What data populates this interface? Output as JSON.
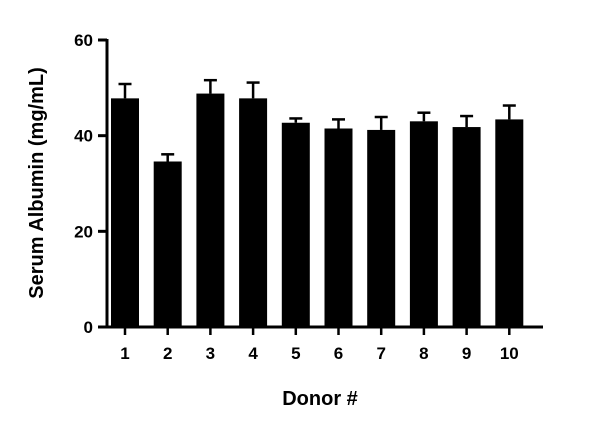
{
  "chart_data": {
    "type": "bar",
    "categories": [
      "1",
      "2",
      "3",
      "4",
      "5",
      "6",
      "7",
      "8",
      "9",
      "10"
    ],
    "values": [
      47.8,
      34.6,
      48.8,
      47.8,
      42.7,
      41.5,
      41.2,
      43.0,
      41.8,
      43.4
    ],
    "errors": [
      3.0,
      1.5,
      2.8,
      3.3,
      0.9,
      1.9,
      2.7,
      1.8,
      2.3,
      2.9
    ],
    "xlabel": "Donor #",
    "ylabel": "Serum Albumin (mg/mL)",
    "ylim": [
      0,
      60
    ],
    "yticks": [
      "0",
      "20",
      "40",
      "60"
    ],
    "bar_color": "#000000",
    "grid": false,
    "legend": "none"
  }
}
